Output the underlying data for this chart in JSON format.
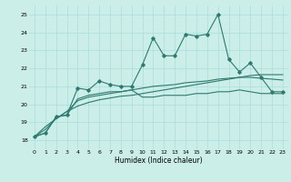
{
  "title": "",
  "xlabel": "Humidex (Indice chaleur)",
  "bg_color": "#cceee8",
  "grid_color": "#aadddd",
  "line_color": "#2d7a6e",
  "xlim": [
    -0.5,
    23.5
  ],
  "ylim": [
    17.5,
    25.5
  ],
  "yticks": [
    18,
    19,
    20,
    21,
    22,
    23,
    24,
    25
  ],
  "xticks": [
    0,
    1,
    2,
    3,
    4,
    5,
    6,
    7,
    8,
    9,
    10,
    11,
    12,
    13,
    14,
    15,
    16,
    17,
    18,
    19,
    20,
    21,
    22,
    23
  ],
  "series_main": [
    18.2,
    18.4,
    19.3,
    19.4,
    20.9,
    20.8,
    21.3,
    21.1,
    21.0,
    21.0,
    22.2,
    23.7,
    22.7,
    22.7,
    23.9,
    23.8,
    23.9,
    25.0,
    22.5,
    21.8,
    22.3,
    21.5,
    20.7,
    20.7
  ],
  "series_low": [
    18.2,
    18.4,
    19.3,
    19.4,
    20.3,
    20.5,
    20.6,
    20.7,
    20.7,
    20.8,
    20.4,
    20.4,
    20.5,
    20.5,
    20.5,
    20.6,
    20.6,
    20.7,
    20.7,
    20.8,
    20.7,
    20.6,
    20.6,
    20.6
  ],
  "series_mid": [
    18.2,
    18.6,
    19.2,
    19.6,
    20.2,
    20.4,
    20.5,
    20.6,
    20.7,
    20.8,
    20.9,
    21.0,
    21.05,
    21.1,
    21.2,
    21.25,
    21.3,
    21.4,
    21.45,
    21.5,
    21.5,
    21.45,
    21.4,
    21.35
  ],
  "series_reg": [
    18.2,
    18.75,
    19.2,
    19.6,
    19.9,
    20.1,
    20.25,
    20.35,
    20.45,
    20.5,
    20.6,
    20.7,
    20.8,
    20.9,
    21.0,
    21.1,
    21.2,
    21.3,
    21.4,
    21.5,
    21.6,
    21.65,
    21.65,
    21.65
  ]
}
